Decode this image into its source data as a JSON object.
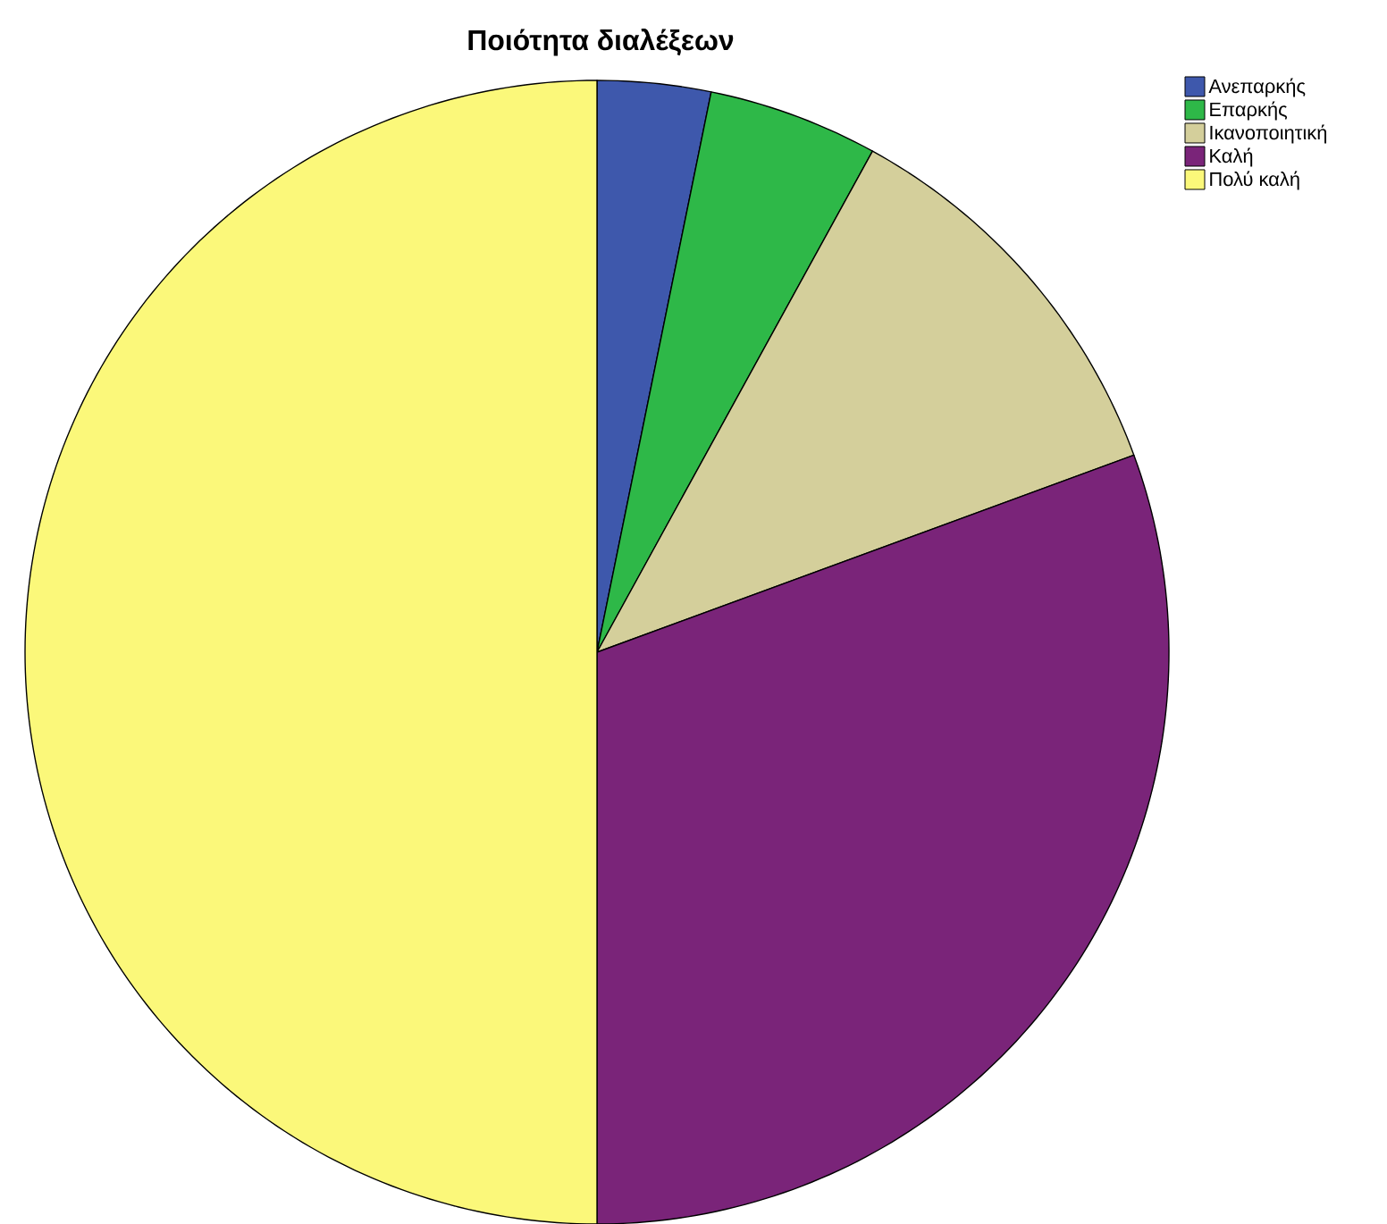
{
  "chart_data": {
    "type": "pie",
    "title": "Ποιότητα διαλέξεων",
    "categories": [
      "Ανεπαρκής",
      "Επαρκής",
      "Ικανοποιητική",
      "Καλή",
      "Πολύ καλή"
    ],
    "values": [
      3.2,
      4.8,
      11.4,
      30.6,
      50
    ],
    "colors": [
      "#3e58ac",
      "#2eb848",
      "#d4cf9b",
      "#7a2479",
      "#fbf87a"
    ],
    "legend": "top right"
  }
}
